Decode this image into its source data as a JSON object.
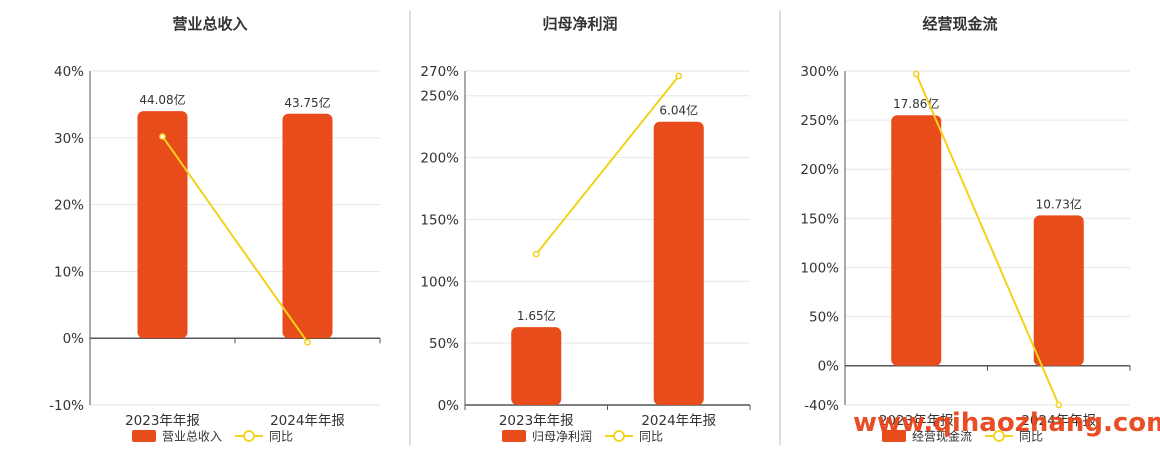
{
  "colors": {
    "bar": "#e84c1b",
    "line": "#f2d21b",
    "axis": "#555555",
    "grid": "#e6e6e6",
    "divider": "#bdbdbd",
    "watermark": "#e8441a"
  },
  "watermark": "www.qihaozhang.com",
  "chart_data": [
    {
      "type": "bar",
      "title": "营业总收入",
      "categories": [
        "2023年年报",
        "2024年年报"
      ],
      "series": [
        {
          "name": "营业总收入",
          "kind": "bar",
          "values": [
            34.0,
            33.6
          ],
          "labels": [
            "44.08亿",
            "43.75亿"
          ]
        },
        {
          "name": "同比",
          "kind": "line",
          "values": [
            30.2,
            -0.6
          ]
        }
      ],
      "yticks": [
        "40%",
        "30%",
        "20%",
        "10%",
        "0%",
        "-10%"
      ],
      "ylim": [
        -10,
        40
      ],
      "grid": true,
      "legend": "bottom-center"
    },
    {
      "type": "bar",
      "title": "归母净利润",
      "categories": [
        "2023年年报",
        "2024年年报"
      ],
      "series": [
        {
          "name": "归母净利润",
          "kind": "bar",
          "values": [
            63,
            229
          ],
          "labels": [
            "1.65亿",
            "6.04亿"
          ]
        },
        {
          "name": "同比",
          "kind": "line",
          "values": [
            122,
            266
          ]
        }
      ],
      "yticks": [
        "270%",
        "250%",
        "200%",
        "150%",
        "100%",
        "50%",
        "0%"
      ],
      "ylim": [
        0,
        270
      ],
      "grid": true,
      "legend": "bottom-center"
    },
    {
      "type": "bar",
      "title": "经营现金流",
      "categories": [
        "2023年年报",
        "2024年年报"
      ],
      "series": [
        {
          "name": "经营现金流",
          "kind": "bar",
          "values": [
            255,
            153
          ],
          "labels": [
            "17.86亿",
            "10.73亿"
          ]
        },
        {
          "name": "同比",
          "kind": "line",
          "values": [
            297,
            -40
          ]
        }
      ],
      "yticks": [
        "300%",
        "250%",
        "200%",
        "150%",
        "100%",
        "50%",
        "0%",
        "-40%"
      ],
      "ylim": [
        -40,
        300
      ],
      "grid": true,
      "legend": "bottom-center"
    }
  ]
}
